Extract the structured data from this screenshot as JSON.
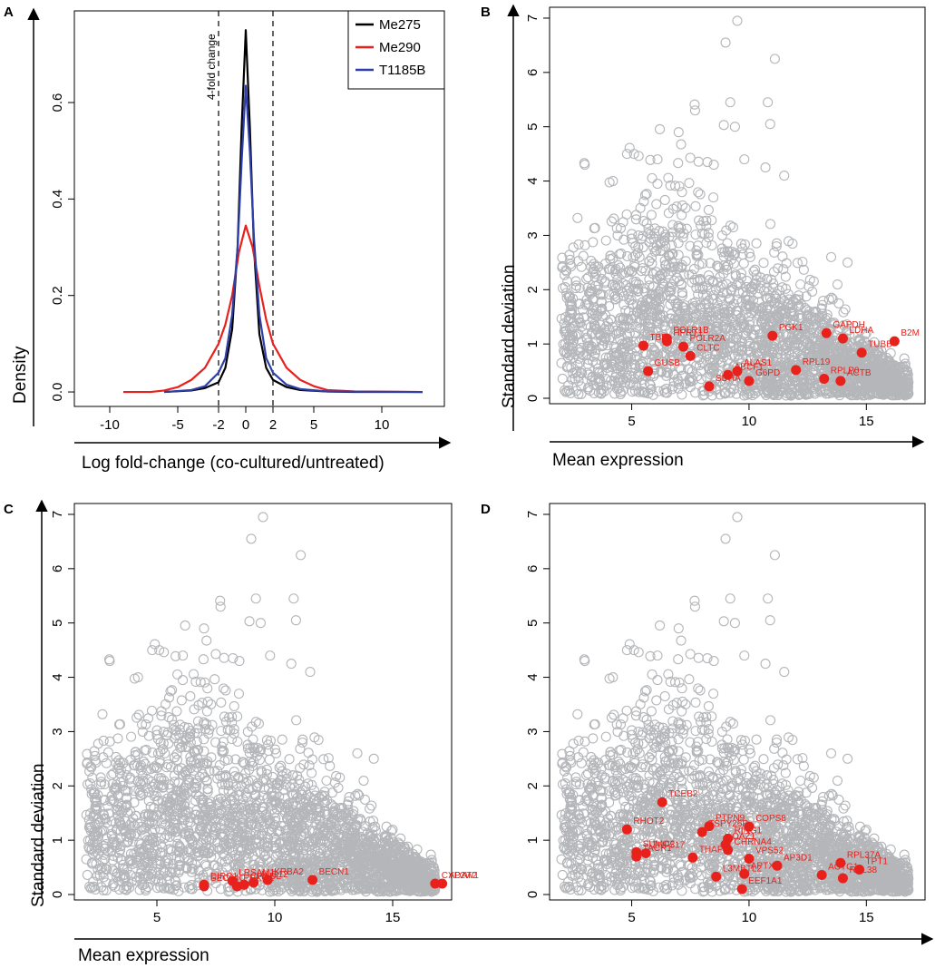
{
  "chart_data": [
    {
      "panel": "A",
      "type": "line",
      "xlabel": "Log fold-change (co-cultured/untreated)",
      "ylabel": "Density",
      "xticks": [
        "-10",
        "-5",
        "-2",
        "0",
        "2",
        "5",
        "10"
      ],
      "tick_values": [
        -10,
        -5,
        -2,
        0,
        2,
        5,
        10
      ],
      "yticks": [
        "0.0",
        "0.2",
        "0.4",
        "0.6"
      ],
      "ytick_values": [
        0.0,
        0.2,
        0.4,
        0.6
      ],
      "xlim": [
        -12.6,
        14.6
      ],
      "ylim": [
        -0.03,
        0.79
      ],
      "annotation": "4-fold change",
      "vlines": [
        -2,
        2
      ],
      "legend": [
        "Me275",
        "Me290",
        "T1185B"
      ],
      "legend_position": "top-right",
      "series": [
        {
          "name": "Me275",
          "color": "#000000",
          "x": [
            -6,
            -4,
            -3,
            -2,
            -1.5,
            -1,
            -0.6,
            -0.3,
            0,
            0.3,
            0.6,
            1,
            1.5,
            2,
            3,
            4,
            6,
            8,
            13
          ],
          "y": [
            0,
            0.003,
            0.008,
            0.02,
            0.05,
            0.13,
            0.3,
            0.55,
            0.75,
            0.55,
            0.3,
            0.12,
            0.05,
            0.025,
            0.01,
            0.004,
            0.001,
            0,
            0
          ]
        },
        {
          "name": "Me290",
          "color": "#e8211c",
          "x": [
            -9,
            -7,
            -6,
            -5,
            -4,
            -3,
            -2,
            -1.5,
            -1,
            -0.5,
            0,
            0.5,
            1,
            1.5,
            2,
            3,
            4,
            5,
            6,
            8,
            13
          ],
          "y": [
            0,
            0,
            0.003,
            0.01,
            0.025,
            0.05,
            0.1,
            0.14,
            0.2,
            0.29,
            0.345,
            0.3,
            0.22,
            0.15,
            0.1,
            0.05,
            0.025,
            0.012,
            0.004,
            0.001,
            0
          ]
        },
        {
          "name": "T1185B",
          "color": "#2e3fa8",
          "x": [
            -6,
            -4,
            -3,
            -2,
            -1.5,
            -1,
            -0.6,
            -0.3,
            0,
            0.3,
            0.6,
            1,
            1.5,
            2,
            3,
            4,
            6,
            13
          ],
          "y": [
            0,
            0.004,
            0.012,
            0.04,
            0.07,
            0.16,
            0.3,
            0.48,
            0.635,
            0.5,
            0.32,
            0.16,
            0.07,
            0.04,
            0.015,
            0.006,
            0.001,
            0
          ]
        }
      ]
    },
    {
      "panel": "B",
      "type": "scatter",
      "xlabel": "Mean expression",
      "ylabel": "Standard deviation",
      "xticks": [
        "5",
        "10",
        "15"
      ],
      "yticks": [
        "0",
        "1",
        "2",
        "3",
        "4",
        "5",
        "6",
        "7"
      ],
      "xlim": [
        1.5,
        17.5
      ],
      "ylim": [
        -0.1,
        7.2
      ],
      "highlighted": [
        {
          "label": "POLR1B",
          "x": 6.5,
          "y": 1.1
        },
        {
          "label": "TBP",
          "x": 5.5,
          "y": 0.97
        },
        {
          "label": "HPRT1",
          "x": 6.5,
          "y": 1.05
        },
        {
          "label": "POLR2A",
          "x": 7.2,
          "y": 0.95
        },
        {
          "label": "CLTC",
          "x": 7.5,
          "y": 0.78
        },
        {
          "label": "GUSB",
          "x": 5.7,
          "y": 0.5
        },
        {
          "label": "ALAS1",
          "x": 9.5,
          "y": 0.5
        },
        {
          "label": "ABCF1",
          "x": 9.1,
          "y": 0.43
        },
        {
          "label": "G6PD",
          "x": 10.0,
          "y": 0.32
        },
        {
          "label": "SDHA",
          "x": 8.3,
          "y": 0.22
        },
        {
          "label": "PGK1",
          "x": 11.0,
          "y": 1.15
        },
        {
          "label": "GAPDH",
          "x": 13.3,
          "y": 1.2
        },
        {
          "label": "LDHA",
          "x": 14.0,
          "y": 1.1
        },
        {
          "label": "B2M",
          "x": 16.2,
          "y": 1.05
        },
        {
          "label": "TUBB",
          "x": 14.8,
          "y": 0.84
        },
        {
          "label": "RPL19",
          "x": 12.0,
          "y": 0.52
        },
        {
          "label": "RPLP0",
          "x": 13.2,
          "y": 0.36
        },
        {
          "label": "ACTB",
          "x": 13.9,
          "y": 0.32
        }
      ]
    },
    {
      "panel": "C",
      "type": "scatter",
      "xlabel": "Mean expression",
      "ylabel": "Standard deviation",
      "xticks": [
        "5",
        "10",
        "15"
      ],
      "yticks": [
        "0",
        "1",
        "2",
        "3",
        "4",
        "5",
        "6",
        "7"
      ],
      "xlim": [
        1.5,
        17.5
      ],
      "ylim": [
        -0.1,
        7.2
      ],
      "highlighted": [
        {
          "label": "DIRC1",
          "x": 7.0,
          "y": 0.18
        },
        {
          "label": "SEC24C",
          "x": 7.0,
          "y": 0.15
        },
        {
          "label": "LRSAM1",
          "x": 8.2,
          "y": 0.25
        },
        {
          "label": "PHKG1",
          "x": 8.4,
          "y": 0.15
        },
        {
          "label": "CHADL",
          "x": 8.7,
          "y": 0.18
        },
        {
          "label": "ALG12",
          "x": 9.1,
          "y": 0.22
        },
        {
          "label": "KRBA2",
          "x": 9.7,
          "y": 0.27
        },
        {
          "label": "BECN1",
          "x": 11.6,
          "y": 0.27
        },
        {
          "label": "CYP2W1",
          "x": 16.8,
          "y": 0.2
        },
        {
          "label": "ADAT2",
          "x": 17.1,
          "y": 0.2
        }
      ]
    },
    {
      "panel": "D",
      "type": "scatter",
      "xlabel": "",
      "ylabel": "",
      "xticks": [
        "5",
        "10",
        "15"
      ],
      "yticks": [
        "0",
        "1",
        "2",
        "3",
        "4",
        "5",
        "6",
        "7"
      ],
      "xlim": [
        1.5,
        17.5
      ],
      "ylim": [
        -0.1,
        7.2
      ],
      "highlighted": [
        {
          "label": "TCEB2",
          "x": 6.3,
          "y": 1.7
        },
        {
          "label": "RHOT2",
          "x": 4.8,
          "y": 1.2
        },
        {
          "label": "TSPY26P",
          "x": 8.0,
          "y": 1.15
        },
        {
          "label": "PTPN9",
          "x": 8.3,
          "y": 1.26
        },
        {
          "label": "COPS8",
          "x": 10.0,
          "y": 1.25
        },
        {
          "label": "RING1",
          "x": 9.1,
          "y": 1.03
        },
        {
          "label": "SUMO2",
          "x": 5.2,
          "y": 0.78
        },
        {
          "label": "ZNF517",
          "x": 5.6,
          "y": 0.76
        },
        {
          "label": "TACR1",
          "x": 5.2,
          "y": 0.7
        },
        {
          "label": "THAP3",
          "x": 7.6,
          "y": 0.68
        },
        {
          "label": "OAZ1",
          "x": 9.0,
          "y": 0.92
        },
        {
          "label": "CHRNA4",
          "x": 9.1,
          "y": 0.82
        },
        {
          "label": "VPS52",
          "x": 10.0,
          "y": 0.66
        },
        {
          "label": "AP3D1",
          "x": 11.2,
          "y": 0.53
        },
        {
          "label": "APTX",
          "x": 9.8,
          "y": 0.38
        },
        {
          "label": "L3MBTL2",
          "x": 8.6,
          "y": 0.33
        },
        {
          "label": "EEF1A1",
          "x": 9.7,
          "y": 0.1
        },
        {
          "label": "ACTG1",
          "x": 13.1,
          "y": 0.36
        },
        {
          "label": "RPL37A",
          "x": 13.9,
          "y": 0.58
        },
        {
          "label": "RPL38",
          "x": 14.0,
          "y": 0.3
        },
        {
          "label": "TPT1",
          "x": 14.7,
          "y": 0.46
        }
      ]
    }
  ]
}
